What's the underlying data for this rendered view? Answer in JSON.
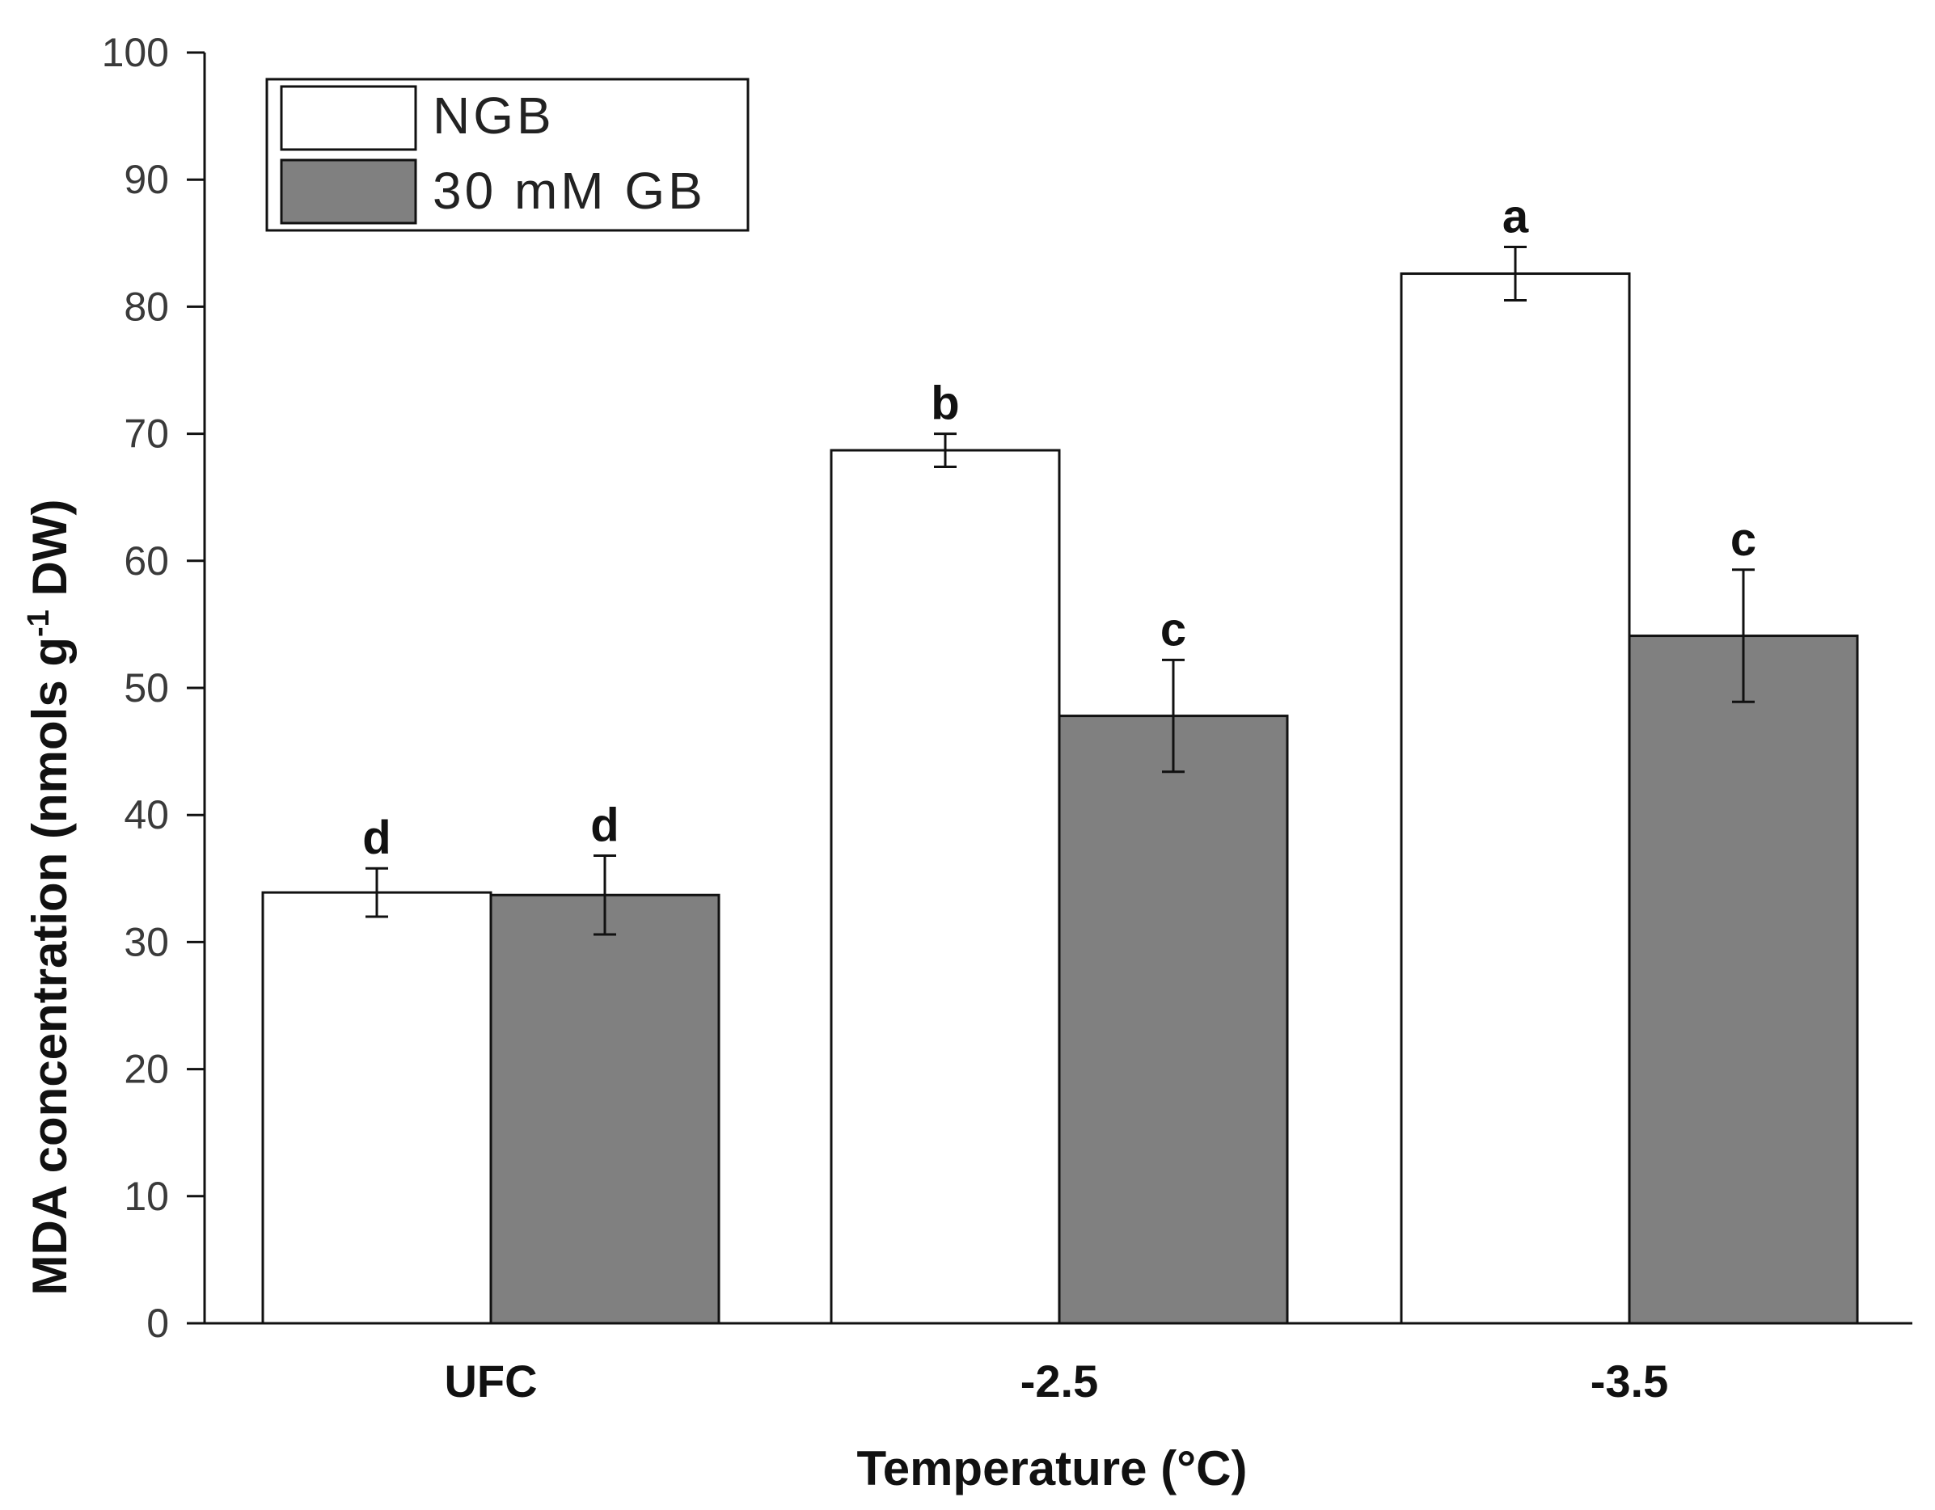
{
  "chart_data": {
    "type": "bar",
    "title": "",
    "xlabel": "Temperature (°C)",
    "ylabel": {
      "prefix": "MDA concentration (nmols g",
      "superscript": "-1",
      "suffix": " DW)"
    },
    "ylim": [
      0,
      100
    ],
    "yticks": [
      0,
      10,
      20,
      30,
      40,
      50,
      60,
      70,
      80,
      90,
      100
    ],
    "grid": false,
    "legend_position": "top-left",
    "categories": [
      "UFC",
      "-2.5",
      "-3.5"
    ],
    "series": [
      {
        "name": "NGB",
        "color": "#ffffff",
        "values": [
          33.9,
          68.7,
          82.6
        ],
        "errors": [
          1.9,
          1.3,
          2.1
        ],
        "labels": [
          "d",
          "b",
          "a"
        ]
      },
      {
        "name": "30 mM GB",
        "color": "#808080",
        "values": [
          33.7,
          47.8,
          54.1
        ],
        "errors": [
          3.1,
          4.4,
          5.2
        ],
        "labels": [
          "d",
          "c",
          "c"
        ]
      }
    ]
  }
}
